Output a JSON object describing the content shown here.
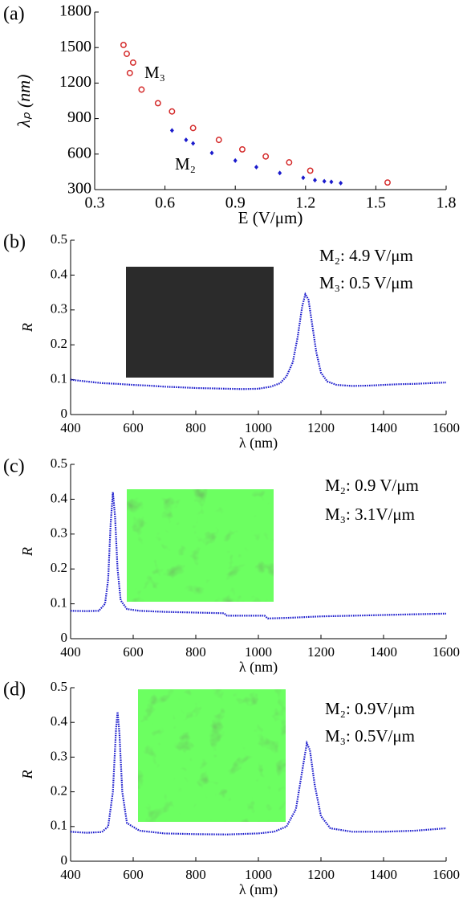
{
  "chart_data": [
    {
      "type": "scatter",
      "label": "(a)",
      "xlabel": "E (V/μm)",
      "ylabel": "λₚ (nm)",
      "xlim": [
        0.3,
        1.8
      ],
      "ylim": [
        300,
        1800
      ],
      "xticks": [
        0.3,
        0.6,
        0.9,
        1.2,
        1.5,
        1.8
      ],
      "yticks": [
        300,
        600,
        900,
        1200,
        1500,
        1800
      ],
      "series": [
        {
          "name": "M₃",
          "color": "#d42a2a",
          "marker": "circle",
          "x": [
            0.423,
            0.437,
            0.464,
            0.45,
            0.5,
            0.57,
            0.63,
            0.72,
            0.83,
            0.93,
            1.03,
            1.13,
            1.22,
            1.55
          ],
          "values": [
            1522,
            1447,
            1373,
            1285,
            1145,
            1030,
            960,
            820,
            720,
            640,
            580,
            530,
            460,
            360
          ]
        },
        {
          "name": "M₂",
          "color": "#1a1acc",
          "marker": "dot",
          "x": [
            0.63,
            0.69,
            0.72,
            0.8,
            0.9,
            0.99,
            1.09,
            1.19,
            1.24,
            1.28,
            1.31,
            1.35
          ],
          "values": [
            800,
            720,
            690,
            610,
            545,
            490,
            440,
            400,
            380,
            370,
            365,
            355
          ]
        }
      ]
    },
    {
      "type": "line",
      "label": "(b)",
      "xlabel": "λ (nm)",
      "ylabel": "R",
      "xlim": [
        400,
        1600
      ],
      "ylim": [
        0,
        0.5
      ],
      "xticks": [
        400,
        600,
        800,
        1000,
        1200,
        1400,
        1600
      ],
      "yticks": [
        0,
        0.1,
        0.2,
        0.3,
        0.4,
        0.5
      ],
      "annotations": [
        "M₂: 4.9 V/μm",
        "M₃: 0.5 V/μm"
      ],
      "series": [
        {
          "color": "#1a1acc",
          "x": [
            400,
            450,
            500,
            550,
            600,
            650,
            700,
            750,
            800,
            850,
            900,
            950,
            1000,
            1040,
            1070,
            1090,
            1110,
            1125,
            1140,
            1150,
            1160,
            1170,
            1185,
            1200,
            1220,
            1250,
            1300,
            1350,
            1400,
            1450,
            1500,
            1550,
            1600
          ],
          "values": [
            0.1,
            0.095,
            0.09,
            0.088,
            0.085,
            0.083,
            0.08,
            0.078,
            0.076,
            0.075,
            0.074,
            0.073,
            0.074,
            0.08,
            0.09,
            0.11,
            0.15,
            0.22,
            0.31,
            0.345,
            0.33,
            0.27,
            0.18,
            0.12,
            0.095,
            0.085,
            0.082,
            0.083,
            0.085,
            0.087,
            0.088,
            0.09,
            0.092
          ]
        }
      ]
    },
    {
      "type": "line",
      "label": "(c)",
      "xlabel": "λ (nm)",
      "ylabel": "R",
      "xlim": [
        400,
        1600
      ],
      "ylim": [
        0,
        0.5
      ],
      "xticks": [
        400,
        600,
        800,
        1000,
        1200,
        1400,
        1600
      ],
      "yticks": [
        0,
        0.1,
        0.2,
        0.3,
        0.4,
        0.5
      ],
      "annotations": [
        "M₂: 0.9 V/μm",
        "M₃:  3.1V/μm"
      ],
      "series": [
        {
          "color": "#1a1acc",
          "x": [
            400,
            450,
            490,
            510,
            520,
            528,
            535,
            542,
            550,
            560,
            580,
            620,
            700,
            800,
            890,
            900,
            1000,
            1020,
            1030,
            1100,
            1200,
            1300,
            1400,
            1500,
            1600
          ],
          "values": [
            0.08,
            0.079,
            0.08,
            0.1,
            0.17,
            0.33,
            0.42,
            0.35,
            0.2,
            0.11,
            0.085,
            0.08,
            0.077,
            0.075,
            0.073,
            0.066,
            0.066,
            0.066,
            0.058,
            0.06,
            0.064,
            0.066,
            0.068,
            0.07,
            0.072
          ]
        }
      ]
    },
    {
      "type": "line",
      "label": "(d)",
      "xlabel": "λ (nm)",
      "ylabel": "R",
      "xlim": [
        400,
        1600
      ],
      "ylim": [
        0,
        0.5
      ],
      "xticks": [
        400,
        600,
        800,
        1000,
        1200,
        1400,
        1600
      ],
      "yticks": [
        0,
        0.1,
        0.2,
        0.3,
        0.4,
        0.5
      ],
      "annotations": [
        "M₂: 0.9V/μm",
        "M₃: 0.5V/μm"
      ],
      "series": [
        {
          "color": "#1a1acc",
          "x": [
            400,
            450,
            500,
            520,
            535,
            545,
            550,
            556,
            565,
            580,
            620,
            700,
            800,
            900,
            1000,
            1050,
            1090,
            1120,
            1140,
            1155,
            1165,
            1180,
            1200,
            1230,
            1300,
            1400,
            1500,
            1600
          ],
          "values": [
            0.085,
            0.082,
            0.084,
            0.1,
            0.2,
            0.38,
            0.43,
            0.37,
            0.2,
            0.11,
            0.088,
            0.08,
            0.078,
            0.077,
            0.08,
            0.085,
            0.1,
            0.15,
            0.26,
            0.34,
            0.32,
            0.22,
            0.13,
            0.095,
            0.085,
            0.085,
            0.088,
            0.095
          ]
        }
      ]
    }
  ]
}
